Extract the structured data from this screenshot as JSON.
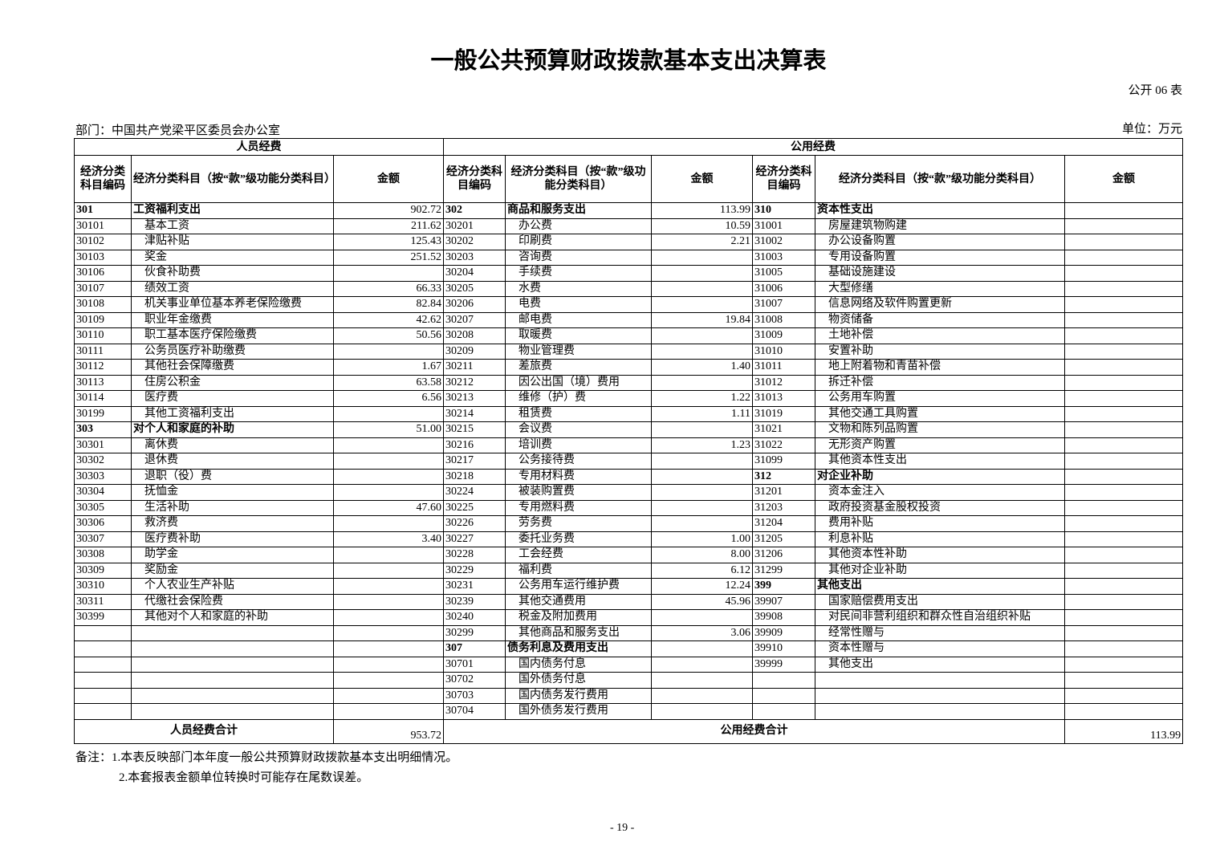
{
  "header": {
    "title": "一般公共预算财政拨款基本支出决算表",
    "table_no": "公开 06 表",
    "department": "部门：中国共产党梁平区委员会办公室",
    "unit": "单位：万元"
  },
  "table": {
    "groups": [
      "人员经费",
      "公用经费"
    ],
    "columns": [
      "经济分类科目编码",
      "经济分类科目（按“款”级功能分类科目）",
      "金额",
      "经济分类科目编码",
      "经济分类科目（按“款”级功能分类科目）",
      "金额",
      "经济分类科目编码",
      "经济分类科目（按“款”级功能分类科目）",
      "金额"
    ],
    "rows": [
      [
        "301",
        "工资福利支出",
        "902.72",
        "302",
        "商品和服务支出",
        "113.99",
        "310",
        "资本性支出",
        null
      ],
      [
        "30101",
        "基本工资",
        "211.62",
        "30201",
        "办公费",
        "10.59",
        "31001",
        "房屋建筑物购建",
        null
      ],
      [
        "30102",
        "津贴补贴",
        "125.43",
        "30202",
        "印刷费",
        "2.21",
        "31002",
        "办公设备购置",
        null
      ],
      [
        "30103",
        "奖金",
        "251.52",
        "30203",
        "咨询费",
        null,
        "31003",
        "专用设备购置",
        null
      ],
      [
        "30106",
        "伙食补助费",
        null,
        "30204",
        "手续费",
        null,
        "31005",
        "基础设施建设",
        null
      ],
      [
        "30107",
        "绩效工资",
        "66.33",
        "30205",
        "水费",
        null,
        "31006",
        "大型修缮",
        null
      ],
      [
        "30108",
        "机关事业单位基本养老保险缴费",
        "82.84",
        "30206",
        "电费",
        null,
        "31007",
        "信息网络及软件购置更新",
        null
      ],
      [
        "30109",
        "职业年金缴费",
        "42.62",
        "30207",
        "邮电费",
        "19.84",
        "31008",
        "物资储备",
        null
      ],
      [
        "30110",
        "职工基本医疗保险缴费",
        "50.56",
        "30208",
        "取暖费",
        null,
        "31009",
        "土地补偿",
        null
      ],
      [
        "30111",
        "公务员医疗补助缴费",
        null,
        "30209",
        "物业管理费",
        null,
        "31010",
        "安置补助",
        null
      ],
      [
        "30112",
        "其他社会保障缴费",
        "1.67",
        "30211",
        "差旅费",
        "1.40",
        "31011",
        "地上附着物和青苗补偿",
        null
      ],
      [
        "30113",
        "住房公积金",
        "63.58",
        "30212",
        "因公出国（境）费用",
        null,
        "31012",
        "拆迁补偿",
        null
      ],
      [
        "30114",
        "医疗费",
        "6.56",
        "30213",
        "维修（护）费",
        "1.22",
        "31013",
        "公务用车购置",
        null
      ],
      [
        "30199",
        "其他工资福利支出",
        null,
        "30214",
        "租赁费",
        "1.11",
        "31019",
        "其他交通工具购置",
        null
      ],
      [
        "303",
        "对个人和家庭的补助",
        "51.00",
        "30215",
        "会议费",
        null,
        "31021",
        "文物和陈列品购置",
        null
      ],
      [
        "30301",
        "离休费",
        null,
        "30216",
        "培训费",
        "1.23",
        "31022",
        "无形资产购置",
        null
      ],
      [
        "30302",
        "退休费",
        null,
        "30217",
        "公务接待费",
        null,
        "31099",
        "其他资本性支出",
        null
      ],
      [
        "30303",
        "退职（役）费",
        null,
        "30218",
        "专用材料费",
        null,
        "312",
        "对企业补助",
        null
      ],
      [
        "30304",
        "抚恤金",
        null,
        "30224",
        "被装购置费",
        null,
        "31201",
        "资本金注入",
        null
      ],
      [
        "30305",
        "生活补助",
        "47.60",
        "30225",
        "专用燃料费",
        null,
        "31203",
        "政府投资基金股权投资",
        null
      ],
      [
        "30306",
        "救济费",
        null,
        "30226",
        "劳务费",
        null,
        "31204",
        "费用补贴",
        null
      ],
      [
        "30307",
        "医疗费补助",
        "3.40",
        "30227",
        "委托业务费",
        "1.00",
        "31205",
        "利息补贴",
        null
      ],
      [
        "30308",
        "助学金",
        null,
        "30228",
        "工会经费",
        "8.00",
        "31206",
        "其他资本性补助",
        null
      ],
      [
        "30309",
        "奖励金",
        null,
        "30229",
        "福利费",
        "6.12",
        "31299",
        "其他对企业补助",
        null
      ],
      [
        "30310",
        "个人农业生产补贴",
        null,
        "30231",
        "公务用车运行维护费",
        "12.24",
        "399",
        "其他支出",
        null
      ],
      [
        "30311",
        "代缴社会保险费",
        null,
        "30239",
        "其他交通费用",
        "45.96",
        "39907",
        "国家赔偿费用支出",
        null
      ],
      [
        "30399",
        "其他对个人和家庭的补助",
        null,
        "30240",
        "税金及附加费用",
        null,
        "39908",
        "对民间非营利组织和群众性自治组织补贴",
        null
      ],
      [
        null,
        null,
        null,
        "30299",
        "其他商品和服务支出",
        "3.06",
        "39909",
        "经常性赠与",
        null
      ],
      [
        null,
        null,
        null,
        "307",
        "债务利息及费用支出",
        null,
        "39910",
        "资本性赠与",
        null
      ],
      [
        null,
        null,
        null,
        "30701",
        "国内债务付息",
        null,
        "39999",
        "其他支出",
        null
      ],
      [
        null,
        null,
        null,
        "30702",
        "国外债务付息",
        null,
        null,
        null,
        null
      ],
      [
        null,
        null,
        null,
        "30703",
        "国内债务发行费用",
        null,
        null,
        null,
        null
      ],
      [
        null,
        null,
        null,
        "30704",
        "国外债务发行费用",
        null,
        null,
        null,
        null
      ]
    ],
    "totals": {
      "personnel_label": "人员经费合计",
      "personnel_value": "953.72",
      "public_label": "公用经费合计",
      "public_value": "113.99"
    }
  },
  "notes": [
    "备注：1.本表反映部门本年度一般公共预算财政拨款基本支出明细情况。",
    "2.本套报表金额单位转换时可能存在尾数误差。"
  ],
  "footer": {
    "page": "- 19 -"
  }
}
